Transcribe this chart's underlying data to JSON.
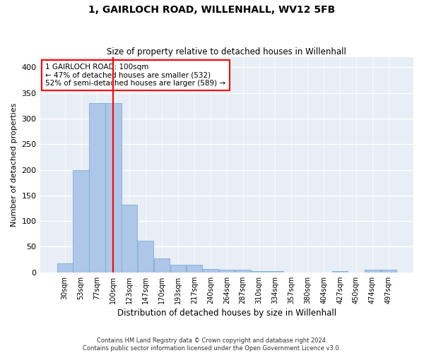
{
  "title": "1, GAIRLOCH ROAD, WILLENHALL, WV12 5FB",
  "subtitle": "Size of property relative to detached houses in Willenhall",
  "xlabel": "Distribution of detached houses by size in Willenhall",
  "ylabel": "Number of detached properties",
  "bar_color": "#aec6e8",
  "bar_edge_color": "#7aafd4",
  "background_color": "#e8eef5",
  "grid_color": "#ffffff",
  "vline_color": "red",
  "annotation_lines": [
    "1 GAIRLOCH ROAD: 100sqm",
    "← 47% of detached houses are smaller (532)",
    "52% of semi-detached houses are larger (589) →"
  ],
  "categories": [
    "30sqm",
    "53sqm",
    "77sqm",
    "100sqm",
    "123sqm",
    "147sqm",
    "170sqm",
    "193sqm",
    "217sqm",
    "240sqm",
    "264sqm",
    "287sqm",
    "310sqm",
    "334sqm",
    "357sqm",
    "380sqm",
    "404sqm",
    "427sqm",
    "450sqm",
    "474sqm",
    "497sqm"
  ],
  "values": [
    18,
    200,
    330,
    330,
    132,
    62,
    27,
    15,
    15,
    7,
    5,
    5,
    3,
    2,
    0,
    0,
    0,
    2,
    0,
    5,
    5
  ],
  "ylim": [
    0,
    420
  ],
  "yticks": [
    0,
    50,
    100,
    150,
    200,
    250,
    300,
    350,
    400
  ],
  "footer": "Contains HM Land Registry data © Crown copyright and database right 2024.\nContains public sector information licensed under the Open Government Licence v3.0."
}
